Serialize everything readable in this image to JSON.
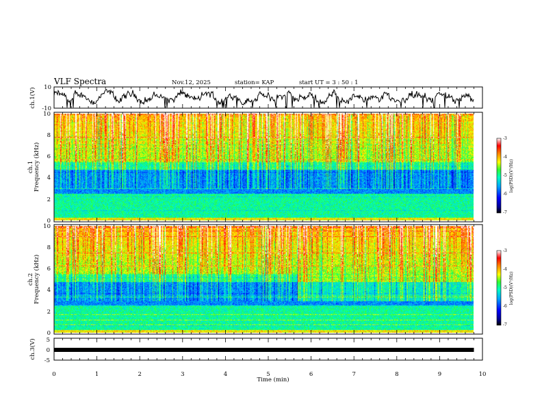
{
  "header": {
    "title": "VLF Spectra",
    "date": "Nov.12, 2025",
    "station": "station= KAP",
    "start_ut": "start  UT =  3 : 50 : 1"
  },
  "chart_data": [
    {
      "type": "line",
      "name": "ch1-waveform",
      "ylabel": "ch.1(V)",
      "ylim": [
        -10,
        10
      ],
      "yticks": [
        "10",
        "-10"
      ],
      "xlim": [
        0,
        10
      ],
      "data_extent_min": 9.8
    },
    {
      "type": "heatmap",
      "name": "ch1-spectrogram",
      "ylabel_top": "ch.1",
      "ylabel": "Frequency (kHz)",
      "ylim": [
        0,
        10
      ],
      "yticks": [
        "0",
        "2",
        "4",
        "6",
        "8",
        "10"
      ],
      "xlim": [
        0,
        10
      ],
      "data_extent_min": 9.8,
      "colorbar": {
        "label": "log(PSD)(V²/Hz)",
        "min": -7,
        "max": -3,
        "ticks": [
          "-3",
          "-4",
          "-5",
          "-6",
          "-7"
        ]
      }
    },
    {
      "type": "heatmap",
      "name": "ch2-spectrogram",
      "ylabel_top": "ch.2",
      "ylabel": "Frequency (kHz)",
      "ylim": [
        0,
        10
      ],
      "yticks": [
        "0",
        "2",
        "4",
        "6",
        "8",
        "10"
      ],
      "xlim": [
        0,
        10
      ],
      "data_extent_min": 9.8,
      "colorbar": {
        "label": "log(PSD)(V²/Hz)",
        "min": -7,
        "max": -3,
        "ticks": [
          "-3",
          "-4",
          "-5",
          "-6",
          "-7"
        ]
      }
    },
    {
      "type": "line",
      "name": "ch3-waveform",
      "ylabel": "ch.3(V)",
      "ylim": [
        -5,
        5
      ],
      "yticks": [
        "5",
        "0",
        "-5"
      ],
      "xlim": [
        0,
        10
      ],
      "data_extent_min": 9.8
    }
  ],
  "xaxis": {
    "label": "Time  (min)",
    "ticks": [
      "0",
      "1",
      "2",
      "3",
      "4",
      "5",
      "6",
      "7",
      "8",
      "9",
      "10"
    ]
  },
  "colors": {
    "trace": "#000000",
    "colormap": [
      "#000080",
      "#0000ff",
      "#00aaff",
      "#00ffcc",
      "#33ff33",
      "#ffff00",
      "#ff8000",
      "#ff0000",
      "#ffffff"
    ]
  }
}
